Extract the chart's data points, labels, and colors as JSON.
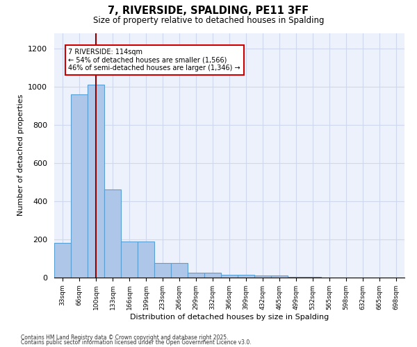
{
  "title1": "7, RIVERSIDE, SPALDING, PE11 3FF",
  "title2": "Size of property relative to detached houses in Spalding",
  "xlabel": "Distribution of detached houses by size in Spalding",
  "ylabel": "Number of detached properties",
  "categories": [
    "33sqm",
    "66sqm",
    "100sqm",
    "133sqm",
    "166sqm",
    "199sqm",
    "233sqm",
    "266sqm",
    "299sqm",
    "332sqm",
    "366sqm",
    "399sqm",
    "432sqm",
    "465sqm",
    "499sqm",
    "532sqm",
    "565sqm",
    "598sqm",
    "632sqm",
    "665sqm",
    "698sqm"
  ],
  "values": [
    180,
    960,
    1010,
    460,
    190,
    190,
    75,
    75,
    25,
    25,
    15,
    15,
    10,
    10,
    5,
    5,
    1,
    1,
    1,
    1,
    1
  ],
  "bar_color": "#aec6e8",
  "bar_edge_color": "#5a9fd4",
  "vline_x": 2.0,
  "vline_color": "#8b0000",
  "annotation_text": "7 RIVERSIDE: 114sqm\n← 54% of detached houses are smaller (1,566)\n46% of semi-detached houses are larger (1,346) →",
  "box_color": "#cc0000",
  "background_color": "#edf1fb",
  "grid_color": "#d0d8ee",
  "ylim": [
    0,
    1280
  ],
  "yticks": [
    0,
    200,
    400,
    600,
    800,
    1000,
    1200
  ],
  "footer1": "Contains HM Land Registry data © Crown copyright and database right 2025.",
  "footer2": "Contains public sector information licensed under the Open Government Licence v3.0."
}
